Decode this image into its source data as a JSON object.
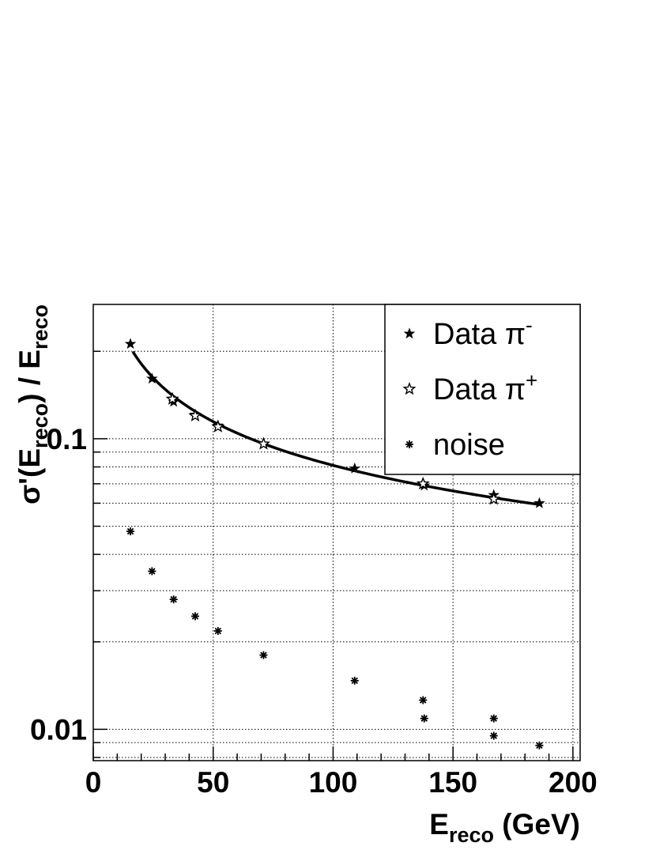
{
  "chart_data": {
    "type": "scatter",
    "title": "",
    "xlabel": "E",
    "xlabel_sub": "reco",
    "xlabel_unit": " (GeV)",
    "ylabel_parts": [
      "σ'(E",
      "reco",
      ") / E",
      "reco"
    ],
    "xlim": [
      0,
      203
    ],
    "ylim": [
      0.0078,
      0.29
    ],
    "y_scale": "log",
    "grid": true,
    "x_ticks": [
      0,
      50,
      100,
      150,
      200
    ],
    "x_tick_labels": [
      "0",
      "50",
      "100",
      "150",
      "200"
    ],
    "y_ticks": [
      0.01,
      0.1
    ],
    "y_tick_labels": [
      "0.01",
      "0.1"
    ],
    "legend_position": "top-right",
    "series": [
      {
        "name": "Data π⁻",
        "legend_main": "Data π",
        "legend_sup": "-",
        "marker": "filled-star",
        "x": [
          15.5,
          24.5,
          33.5,
          42.5,
          52,
          71,
          109,
          138,
          167,
          186
        ],
        "y": [
          0.212,
          0.161,
          0.134,
          0.121,
          0.111,
          0.096,
          0.079,
          0.069,
          0.064,
          0.06
        ]
      },
      {
        "name": "Data π⁺",
        "legend_main": "Data π",
        "legend_sup": "+",
        "marker": "open-star",
        "x": [
          33,
          42.5,
          52,
          71,
          137.5,
          167
        ],
        "y": [
          0.137,
          0.12,
          0.11,
          0.096,
          0.07,
          0.062
        ]
      },
      {
        "name": "noise",
        "legend_main": "noise",
        "legend_sup": "",
        "marker": "asterisk",
        "x": [
          15.5,
          24.5,
          33.5,
          42.5,
          52,
          71,
          109,
          137.5,
          138,
          167,
          167,
          186
        ],
        "y": [
          0.048,
          0.035,
          0.028,
          0.0245,
          0.0218,
          0.018,
          0.0147,
          0.0126,
          0.0109,
          0.0109,
          0.0095,
          0.0088
        ]
      }
    ],
    "fit_curve": {
      "model": "a/sqrt(E)",
      "a": 0.81,
      "x_range": [
        16.5,
        186
      ]
    }
  }
}
